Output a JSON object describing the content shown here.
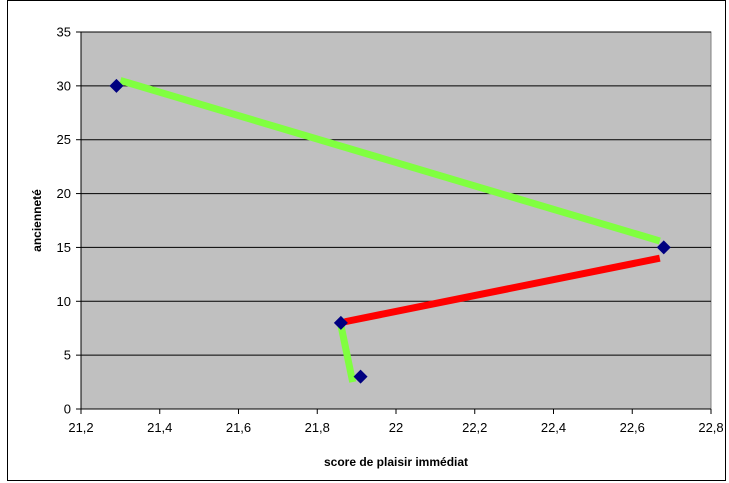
{
  "chart_data": {
    "type": "scatter",
    "title": "",
    "xlabel": "score de plaisir immédiat",
    "ylabel": "ancienneté",
    "xlim": [
      21.2,
      22.8
    ],
    "ylim": [
      0,
      35
    ],
    "x_ticks": [
      "21,2",
      "21,4",
      "21,6",
      "21,8",
      "22",
      "22,2",
      "22,4",
      "22,6",
      "22,8"
    ],
    "y_ticks": [
      "0",
      "5",
      "10",
      "15",
      "20",
      "25",
      "30",
      "35"
    ],
    "grid": "horizontal",
    "plot_background": "#c0c0c0",
    "points": [
      {
        "x": 21.29,
        "y": 30
      },
      {
        "x": 22.68,
        "y": 15
      },
      {
        "x": 21.86,
        "y": 8
      },
      {
        "x": 21.91,
        "y": 3
      }
    ],
    "marker_color": "#000080",
    "connectors": [
      {
        "from": [
          21.3,
          30.5
        ],
        "to": [
          22.67,
          15.6
        ],
        "color": "#80ff40"
      },
      {
        "from": [
          22.67,
          14.0
        ],
        "to": [
          21.87,
          8.1
        ],
        "color": "#ff0000"
      },
      {
        "from": [
          21.86,
          7.8
        ],
        "to": [
          21.89,
          2.5
        ],
        "color": "#80ff40"
      }
    ]
  }
}
